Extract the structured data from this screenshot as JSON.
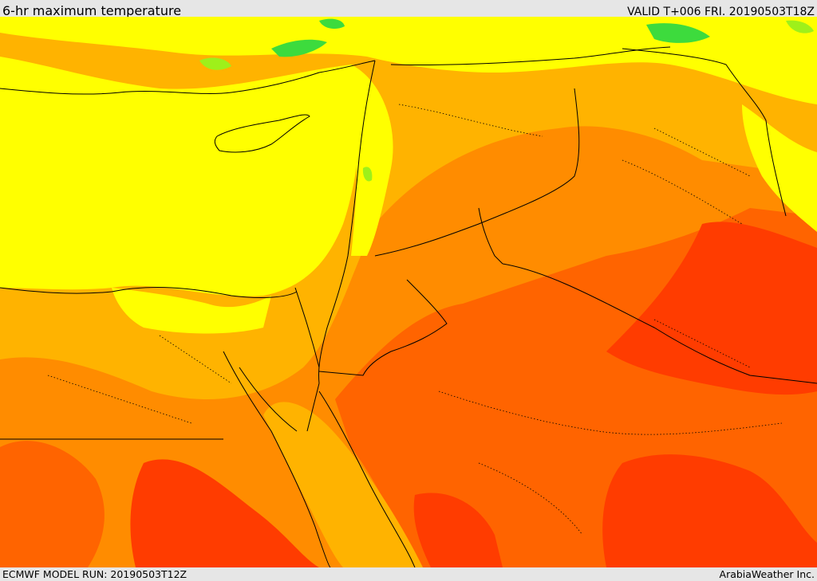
{
  "header": {
    "title": "6-hr maximum temperature",
    "valid": "VALID T+006 FRI. 20190503T18Z"
  },
  "footer": {
    "run": "ECMWF MODEL RUN: 20190503T12Z",
    "credit": "ArabiaWeather Inc."
  },
  "map": {
    "field": "6-hr maximum temperature",
    "colors": {
      "green": "#3ddb3d",
      "light_green": "#9ef01a",
      "yellow_green": "#d8f510",
      "yellow": "#ffff00",
      "amber": "#ffb300",
      "orange": "#ff8c00",
      "dark_orange": "#ff6400",
      "red_orange": "#ff3c00",
      "red": "#ff2a00",
      "boundaries": "#000000"
    }
  }
}
